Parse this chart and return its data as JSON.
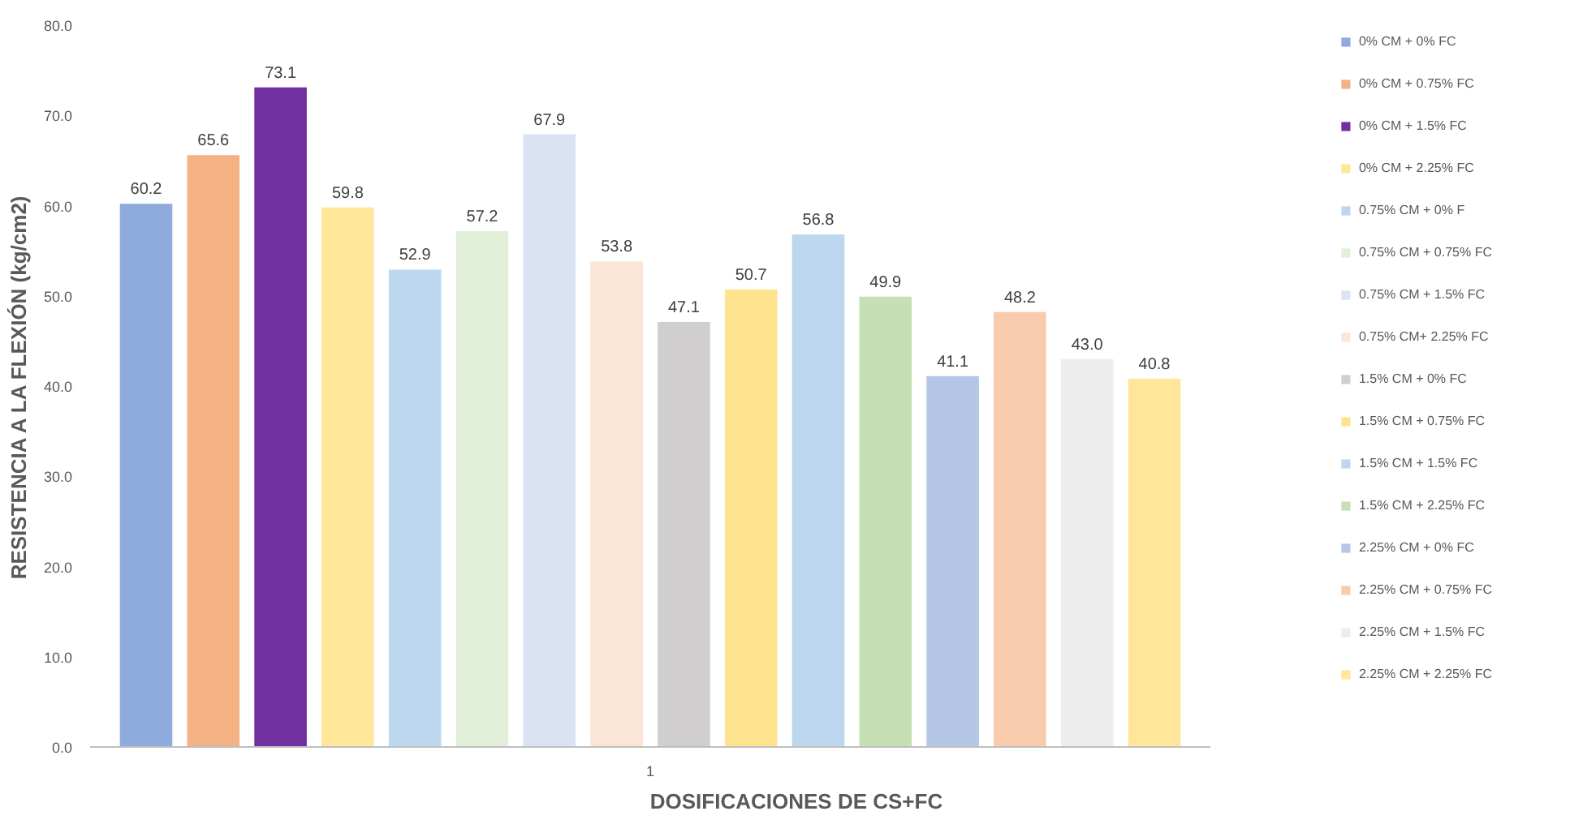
{
  "chart_data": {
    "type": "bar",
    "xlabel": "DOSIFICACIONES DE CS+FC",
    "ylabel": "RESISTENCIA A LA FLEXIÓN (kg/cm2)",
    "categories": [
      "1"
    ],
    "ylim": [
      0,
      80
    ],
    "yticks": [
      {
        "value": 0,
        "label": "0.0"
      },
      {
        "value": 10,
        "label": "10.0"
      },
      {
        "value": 20,
        "label": "20.0"
      },
      {
        "value": 30,
        "label": "30.0"
      },
      {
        "value": 40,
        "label": "40.0"
      },
      {
        "value": 50,
        "label": "50.0"
      },
      {
        "value": 60,
        "label": "60.0"
      },
      {
        "value": 70,
        "label": "70.0"
      },
      {
        "value": 80,
        "label": "80.0"
      }
    ],
    "grid": false,
    "legend": "right",
    "data_labels": true,
    "series": [
      {
        "name": "0% CM + 0% FC",
        "color": "#8faadc",
        "values": [
          60.2
        ]
      },
      {
        "name": "0% CM + 0.75% FC",
        "color": "#f4b183",
        "values": [
          65.6
        ]
      },
      {
        "name": "0% CM + 1.5% FC",
        "color": "#7030a0",
        "values": [
          73.1
        ]
      },
      {
        "name": "0% CM + 2.25% FC",
        "color": "#ffe699",
        "values": [
          59.8
        ]
      },
      {
        "name": "0.75% CM + 0% F",
        "color": "#bdd7ee",
        "values": [
          52.9
        ]
      },
      {
        "name": "0.75% CM + 0.75% FC",
        "color": "#e2f0d9",
        "values": [
          57.2
        ]
      },
      {
        "name": "0.75% CM + 1.5% FC",
        "color": "#dae3f3",
        "values": [
          67.9
        ]
      },
      {
        "name": "0.75% CM+ 2.25% FC",
        "color": "#fbe5d6",
        "values": [
          53.8
        ]
      },
      {
        "name": "1.5% CM + 0% FC",
        "color": "#d0cece",
        "values": [
          47.1
        ]
      },
      {
        "name": "1.5% CM + 0.75% FC",
        "color": "#ffe48f",
        "values": [
          50.7
        ]
      },
      {
        "name": "1.5% CM + 1.5% FC",
        "color": "#bdd7ee",
        "values": [
          56.8
        ]
      },
      {
        "name": "1.5% CM + 2.25% FC",
        "color": "#c5e0b4",
        "values": [
          49.9
        ]
      },
      {
        "name": "2.25% CM + 0% FC",
        "color": "#b4c7e7",
        "values": [
          41.1
        ]
      },
      {
        "name": "2.25% CM + 0.75% FC",
        "color": "#f8cbad",
        "values": [
          48.2
        ]
      },
      {
        "name": "2.25% CM + 1.5% FC",
        "color": "#ededed",
        "values": [
          43.0
        ],
        "value_labels": [
          "43.0"
        ]
      },
      {
        "name": "2.25% CM + 2.25% FC",
        "color": "#ffe699",
        "values": [
          40.8
        ]
      }
    ]
  }
}
